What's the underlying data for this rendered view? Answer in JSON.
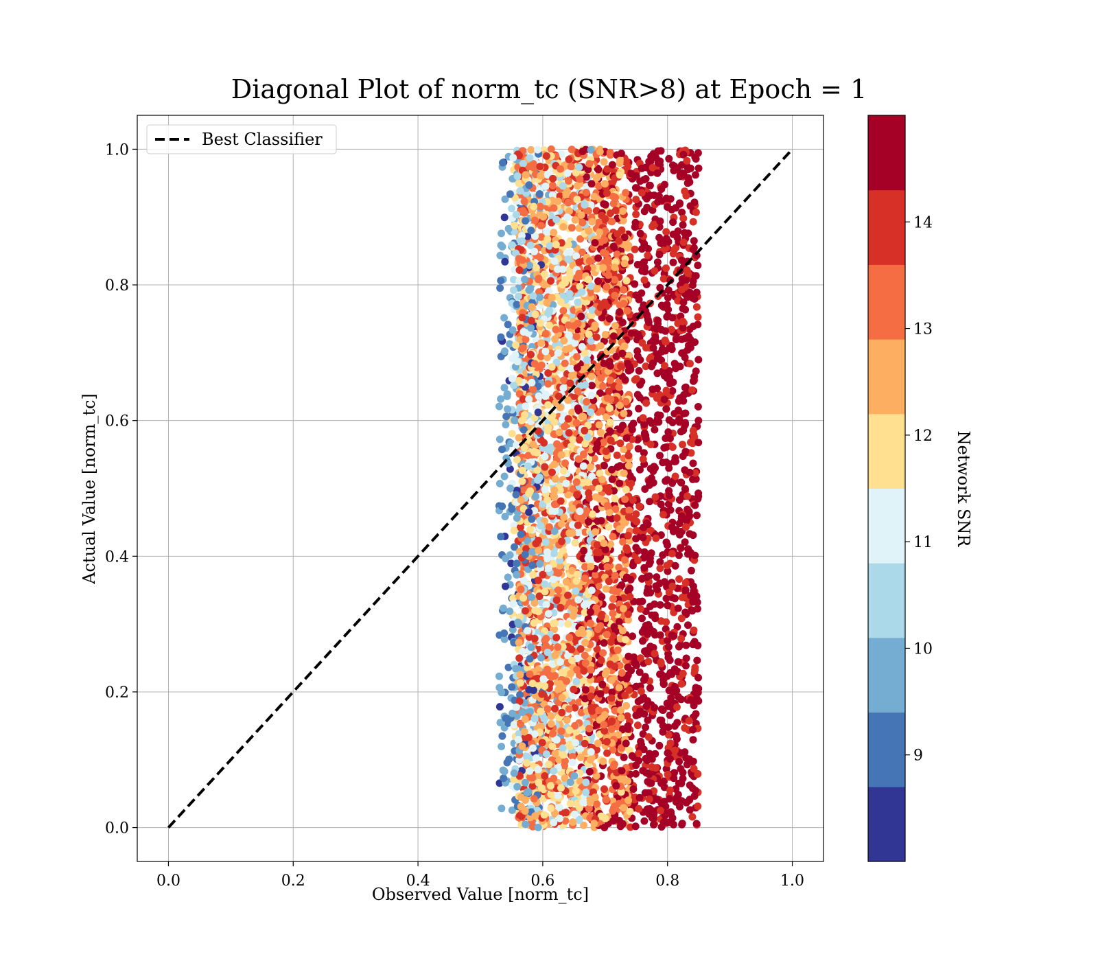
{
  "chart_data": {
    "type": "scatter",
    "title": "Diagonal Plot of norm_tc (SNR>8) at Epoch = 1",
    "xlabel": "Observed Value [norm_tc]",
    "ylabel": "Actual Value [norm_tc]",
    "xlim": [
      -0.05,
      1.05
    ],
    "ylim": [
      -0.05,
      1.05
    ],
    "xticks": [
      "0.0",
      "0.2",
      "0.4",
      "0.6",
      "0.8",
      "1.0"
    ],
    "yticks": [
      "0.0",
      "0.2",
      "0.4",
      "0.6",
      "0.8",
      "1.0"
    ],
    "grid": true,
    "legend": {
      "position": "top-left",
      "entries": [
        "Best Classifier"
      ]
    },
    "reference_line": {
      "name": "Best Classifier",
      "x": [
        0.0,
        1.0
      ],
      "y": [
        0.0,
        1.0
      ],
      "style": "dashed",
      "color": "#000000"
    },
    "scatter_cloud": {
      "x_range_by_snr": [
        {
          "snr_min": 8,
          "x_min": 0.53,
          "x_max": 0.6
        },
        {
          "snr_min": 10,
          "x_min": 0.55,
          "x_max": 0.68
        },
        {
          "snr_min": 12,
          "x_min": 0.56,
          "x_max": 0.74
        },
        {
          "snr_min": 14,
          "x_min": 0.65,
          "x_max": 0.85
        }
      ],
      "y_range": [
        0.0,
        1.0
      ],
      "color_by": "Network SNR"
    },
    "colorbar": {
      "label": "Network SNR",
      "range": [
        8,
        15
      ],
      "ticks": [
        "9",
        "10",
        "11",
        "12",
        "13",
        "14"
      ],
      "tick_values": [
        9,
        10,
        11,
        12,
        13,
        14
      ],
      "colors": [
        "#313695",
        "#4575b4",
        "#74add1",
        "#abd9e9",
        "#e0f3f8",
        "#fee090",
        "#fdae61",
        "#f46d43",
        "#d73027",
        "#a50026"
      ]
    }
  }
}
